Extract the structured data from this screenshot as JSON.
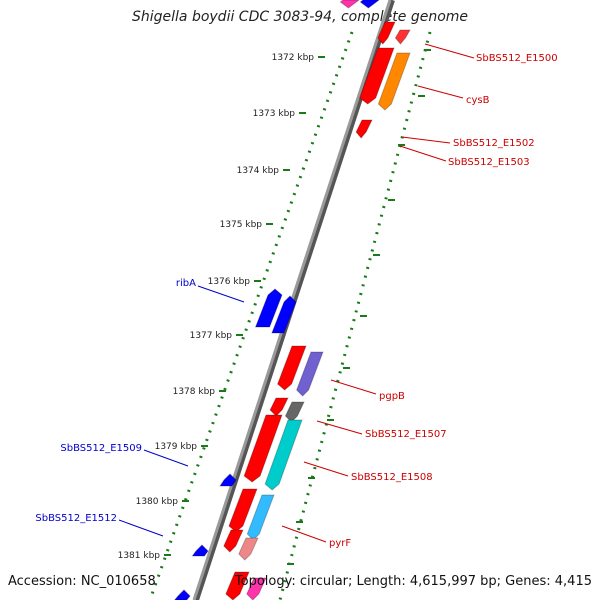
{
  "title": "Shigella boydii CDC 3083-94, complete genome",
  "footer": {
    "accession": "Accession: NC_010658",
    "summary": "Topology: circular; Length: 4,615,997 bp; Genes: 4,415"
  },
  "ticks": [
    "1372 kbp",
    "1373 kbp",
    "1374 kbp",
    "1375 kbp",
    "1376 kbp",
    "1377 kbp",
    "1378 kbp",
    "1379 kbp",
    "1380 kbp",
    "1381 kbp"
  ],
  "gene_labels": [
    {
      "text": "SbBS512_E1500",
      "color": "#cc0000"
    },
    {
      "text": "cysB",
      "color": "#cc0000"
    },
    {
      "text": "SbBS512_E1502",
      "color": "#cc0000"
    },
    {
      "text": "SbBS512_E1503",
      "color": "#cc0000"
    },
    {
      "text": "ribA",
      "color": "#0000cc"
    },
    {
      "text": "pgpB",
      "color": "#cc0000"
    },
    {
      "text": "SbBS512_E1507",
      "color": "#cc0000"
    },
    {
      "text": "SbBS512_E1508",
      "color": "#cc0000"
    },
    {
      "text": "SbBS512_E1509",
      "color": "#0000cc"
    },
    {
      "text": "SbBS512_E1512",
      "color": "#0000cc"
    },
    {
      "text": "pyrF",
      "color": "#cc0000"
    }
  ],
  "colors": {
    "backbone": "#8a8a8a",
    "forward_cds": "#ff0000",
    "reverse_cds": "#0000ff",
    "tick": "#1a7a1a"
  }
}
